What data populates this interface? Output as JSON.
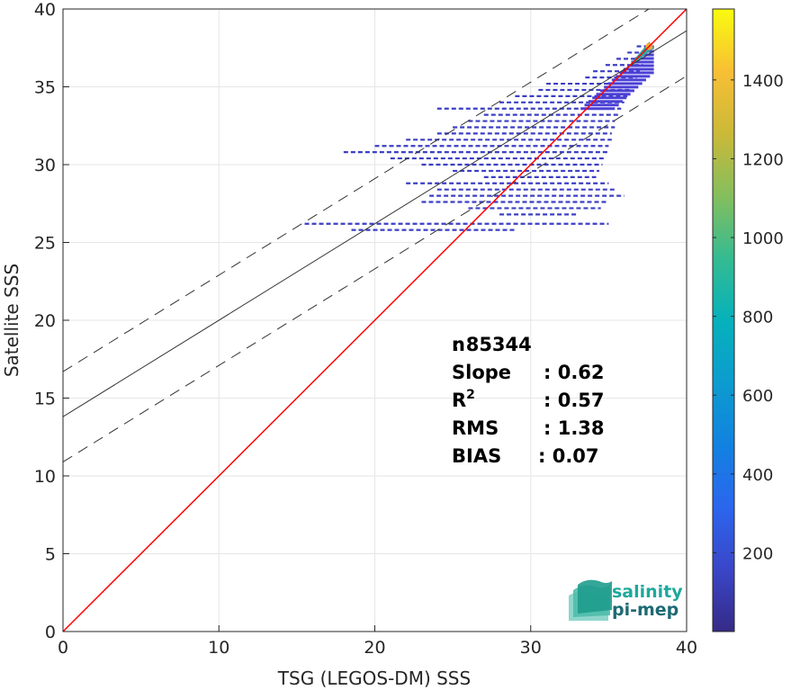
{
  "chart_data": {
    "type": "heatmap",
    "xlabel": "TSG (LEGOS-DM) SSS",
    "ylabel": "Satellite SSS",
    "xlim": [
      0,
      40
    ],
    "ylim": [
      0,
      40
    ],
    "x_ticks": [
      0,
      10,
      20,
      30,
      40
    ],
    "y_ticks": [
      0,
      5,
      10,
      15,
      20,
      25,
      30,
      35,
      40
    ],
    "grid": true,
    "identity_line": {
      "x": [
        0,
        40
      ],
      "y": [
        0,
        40
      ],
      "color": "#ff0000"
    },
    "regression_line": {
      "slope": 0.62,
      "intercept": 13.8
    },
    "confidence_band_offset": 2.9,
    "colorbar": {
      "min": 0,
      "max": 1580,
      "ticks": [
        200,
        400,
        600,
        800,
        1000,
        1200,
        1400
      ]
    },
    "density_rows": [
      {
        "y": 37.6,
        "x": [
          36.8,
          37.9
        ]
      },
      {
        "y": 37.2,
        "x": [
          36.2,
          37.6
        ]
      },
      {
        "y": 36.8,
        "x": [
          35.5,
          37.4
        ]
      },
      {
        "y": 36.4,
        "x": [
          34.8,
          37.2
        ]
      },
      {
        "y": 36.0,
        "x": [
          34.0,
          37.0
        ]
      },
      {
        "y": 35.6,
        "x": [
          33.5,
          36.8
        ]
      },
      {
        "y": 35.2,
        "x": [
          31.0,
          36.6
        ]
      },
      {
        "y": 34.8,
        "x": [
          30.5,
          36.4
        ]
      },
      {
        "y": 34.4,
        "x": [
          29.0,
          36.2
        ]
      },
      {
        "y": 34.0,
        "x": [
          28.0,
          36.0
        ]
      },
      {
        "y": 33.6,
        "x": [
          24.0,
          35.8
        ]
      },
      {
        "y": 33.2,
        "x": [
          27.0,
          35.6
        ]
      },
      {
        "y": 32.8,
        "x": [
          26.0,
          35.4
        ]
      },
      {
        "y": 32.4,
        "x": [
          25.0,
          35.4
        ]
      },
      {
        "y": 32.0,
        "x": [
          24.0,
          35.2
        ]
      },
      {
        "y": 31.6,
        "x": [
          22.0,
          35.2
        ]
      },
      {
        "y": 31.2,
        "x": [
          20.0,
          35.0
        ]
      },
      {
        "y": 30.8,
        "x": [
          18.0,
          35.0
        ]
      },
      {
        "y": 30.4,
        "x": [
          21.0,
          34.8
        ]
      },
      {
        "y": 30.0,
        "x": [
          23.0,
          34.6
        ]
      },
      {
        "y": 29.6,
        "x": [
          25.0,
          34.4
        ]
      },
      {
        "y": 29.2,
        "x": [
          27.0,
          34.2
        ]
      },
      {
        "y": 28.8,
        "x": [
          22.0,
          35.0
        ]
      },
      {
        "y": 28.4,
        "x": [
          24.0,
          35.5
        ]
      },
      {
        "y": 28.0,
        "x": [
          23.5,
          36.0
        ]
      },
      {
        "y": 27.6,
        "x": [
          23.0,
          35.0
        ]
      },
      {
        "y": 27.2,
        "x": [
          26.0,
          34.5
        ]
      },
      {
        "y": 26.8,
        "x": [
          28.0,
          33.0
        ]
      },
      {
        "y": 26.2,
        "x": [
          15.5,
          35.0
        ]
      },
      {
        "y": 25.8,
        "x": [
          18.5,
          29.0
        ]
      }
    ],
    "hot_spot": {
      "x": [
        36.0,
        37.9
      ],
      "y": [
        36.0,
        37.9
      ]
    },
    "stats": [
      {
        "label": "n",
        "value": ": 85344"
      },
      {
        "label": "Slope",
        "value": ": 0.62"
      },
      {
        "label": "R",
        "sup": "2",
        "value": ": 0.57"
      },
      {
        "label": "RMS",
        "value": ": 1.38"
      },
      {
        "label": "BIAS",
        "value": ": 0.07"
      }
    ]
  },
  "logo": {
    "line1": "salinity",
    "line2": "pi-mep",
    "color1": "#1fa89c",
    "color2": "#1d6a73"
  }
}
